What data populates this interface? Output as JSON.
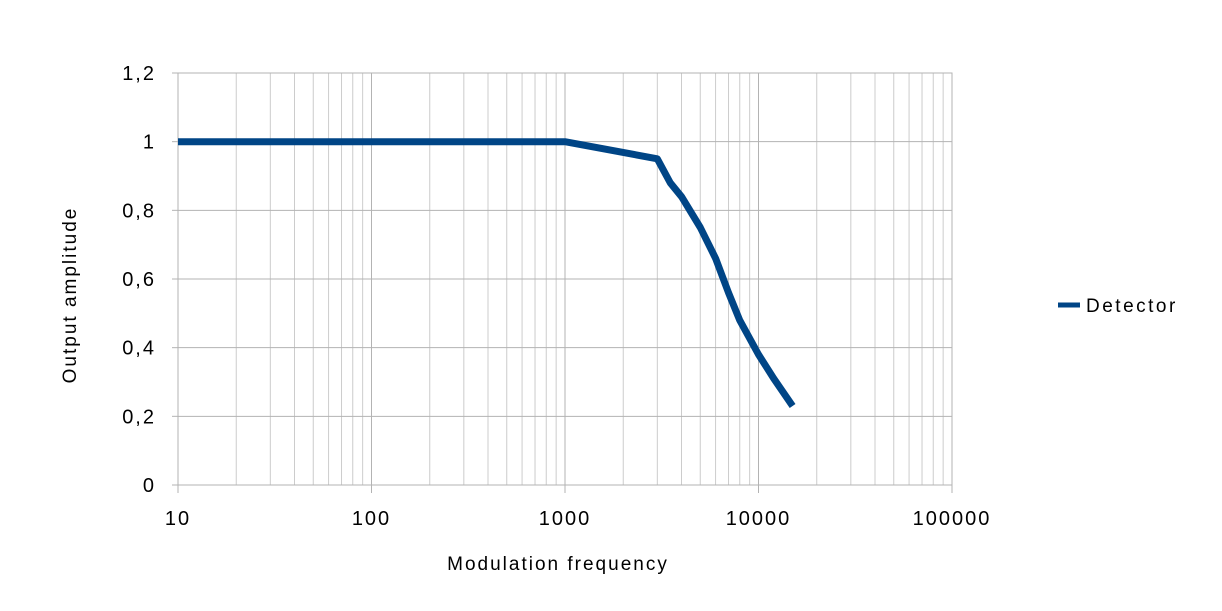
{
  "chart_data": {
    "type": "line",
    "title": "",
    "xlabel": "Modulation frequency",
    "ylabel": "Output amplitude",
    "x_scale": "log",
    "xlim": [
      10,
      100000
    ],
    "ylim": [
      0,
      1.2
    ],
    "grid": true,
    "legend_position": "right",
    "x_tick_labels": [
      "10",
      "100",
      "1000",
      "10000",
      "100000"
    ],
    "x_tick_values": [
      10,
      100,
      1000,
      10000,
      100000
    ],
    "y_tick_labels": [
      "0",
      "0,2",
      "0,4",
      "0,6",
      "0,8",
      "1",
      "1,2"
    ],
    "y_tick_values": [
      0,
      0.2,
      0.4,
      0.6,
      0.8,
      1,
      1.2
    ],
    "series": [
      {
        "name": "Detector",
        "color": "#004586",
        "x": [
          10,
          100,
          1000,
          3000,
          3500,
          4000,
          5000,
          6000,
          7000,
          8000,
          10000,
          12000,
          15000
        ],
        "y": [
          1,
          1,
          1,
          0.95,
          0.88,
          0.84,
          0.75,
          0.66,
          0.56,
          0.48,
          0.38,
          0.31,
          0.23
        ]
      }
    ]
  }
}
